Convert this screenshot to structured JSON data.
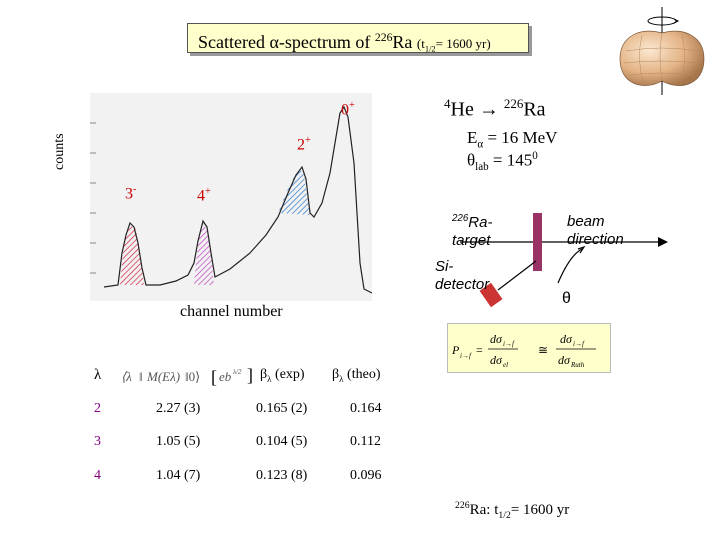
{
  "title": {
    "main": "Scattered α-spectrum of",
    "isotope_mass": "226",
    "isotope": "Ra",
    "halflife_open": "(t",
    "halflife_sub": "1/2",
    "halflife_close": "= 1600 yr)"
  },
  "spectrum": {
    "ylabel": "counts",
    "xlabel": "channel number",
    "peaks": [
      {
        "label": "0",
        "sup": "+",
        "color": "#cc0000"
      },
      {
        "label": "2",
        "sup": "+",
        "color": "#cc0000"
      },
      {
        "label": "3",
        "sup": "-",
        "color": "#cc0000"
      },
      {
        "label": "4",
        "sup": "+",
        "color": "#cc0000"
      }
    ]
  },
  "reaction": {
    "projectile_mass": "4",
    "projectile": "He",
    "arrow": "→",
    "target_mass": "226",
    "target": "Ra",
    "energy_symbol": "E",
    "energy_sub": "α",
    "energy_value": "= 16 MeV",
    "angle_symbol": "θ",
    "angle_sub": "lab",
    "angle_value": "= 145",
    "angle_sup": "0"
  },
  "setup": {
    "target_mass": "226",
    "target_label": "Ra-",
    "target_label2": "target",
    "beam_label": "beam",
    "beam_label2": "direction",
    "detector_label": "Si-",
    "detector_label2": "detector",
    "theta": "θ"
  },
  "table": {
    "header": {
      "lambda": "λ",
      "beta_exp": "β",
      "beta_exp_sub": "λ",
      "beta_exp_rest": " (exp)",
      "beta_theo": "β",
      "beta_theo_sub": "λ",
      "beta_theo_rest": " (theo)"
    },
    "rows": [
      {
        "lambda": "2",
        "matrix": "2.27 (3)",
        "beta_exp": "0.165 (2)",
        "beta_theo": "0.164"
      },
      {
        "lambda": "3",
        "matrix": "1.05 (5)",
        "beta_exp": "0.104 (5)",
        "beta_theo": "0.112"
      },
      {
        "lambda": "4",
        "matrix": "1.04 (7)",
        "beta_exp": "0.123 (8)",
        "beta_theo": "0.096"
      }
    ]
  },
  "footer": {
    "mass": "226",
    "text": "Ra: t",
    "sub": "1/2",
    "value": "= 1600 yr"
  },
  "colors": {
    "peak_label": "#cc0000",
    "target_bar": "#993366",
    "detector": "#cc3333",
    "formula_bg": "#ffffcc",
    "title_bg": "#ffffcc"
  }
}
